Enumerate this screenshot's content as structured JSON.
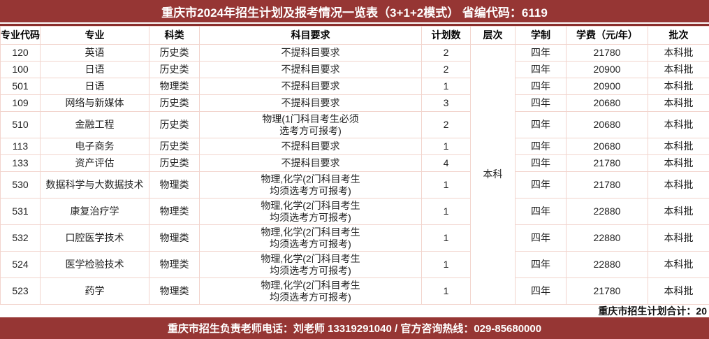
{
  "title": "重庆市2024年招生计划及报考情况一览表（3+1+2模式） 省编代码：6119",
  "colors": {
    "banner_background": "#963634",
    "divider": "#8a2e2c",
    "grid_line": "#f2d4cd",
    "banner_text": "#ffffff"
  },
  "table": {
    "headers": [
      "专业代码",
      "专业",
      "科类",
      "科目要求",
      "计划数",
      "层次",
      "学制",
      "学费（元/年）",
      "批次"
    ],
    "level": "本科",
    "rows": [
      {
        "code": "120",
        "major": "英语",
        "category": "历史类",
        "requirement": "不提科目要求",
        "plan": "2",
        "years": "四年",
        "fee": "21780",
        "batch": "本科批"
      },
      {
        "code": "100",
        "major": "日语",
        "category": "历史类",
        "requirement": "不提科目要求",
        "plan": "2",
        "years": "四年",
        "fee": "20900",
        "batch": "本科批"
      },
      {
        "code": "501",
        "major": "日语",
        "category": "物理类",
        "requirement": "不提科目要求",
        "plan": "1",
        "years": "四年",
        "fee": "20900",
        "batch": "本科批"
      },
      {
        "code": "109",
        "major": "网络与新媒体",
        "category": "历史类",
        "requirement": "不提科目要求",
        "plan": "3",
        "years": "四年",
        "fee": "20680",
        "batch": "本科批"
      },
      {
        "code": "510",
        "major": "金融工程",
        "category": "历史类",
        "requirement": "物理(1门科目考生必须\n选考方可报考)",
        "plan": "2",
        "years": "四年",
        "fee": "20680",
        "batch": "本科批"
      },
      {
        "code": "113",
        "major": "电子商务",
        "category": "历史类",
        "requirement": "不提科目要求",
        "plan": "1",
        "years": "四年",
        "fee": "20680",
        "batch": "本科批"
      },
      {
        "code": "133",
        "major": "资产评估",
        "category": "历史类",
        "requirement": "不提科目要求",
        "plan": "4",
        "years": "四年",
        "fee": "21780",
        "batch": "本科批"
      },
      {
        "code": "530",
        "major": "数据科学与大数据技术",
        "category": "物理类",
        "requirement": "物理,化学(2门科目考生\n均须选考方可报考)",
        "plan": "1",
        "years": "四年",
        "fee": "21780",
        "batch": "本科批"
      },
      {
        "code": "531",
        "major": "康复治疗学",
        "category": "物理类",
        "requirement": "物理,化学(2门科目考生\n均须选考方可报考)",
        "plan": "1",
        "years": "四年",
        "fee": "22880",
        "batch": "本科批"
      },
      {
        "code": "532",
        "major": "口腔医学技术",
        "category": "物理类",
        "requirement": "物理,化学(2门科目考生\n均须选考方可报考)",
        "plan": "1",
        "years": "四年",
        "fee": "22880",
        "batch": "本科批"
      },
      {
        "code": "524",
        "major": "医学检验技术",
        "category": "物理类",
        "requirement": "物理,化学(2门科目考生\n均须选考方可报考)",
        "plan": "1",
        "years": "四年",
        "fee": "22880",
        "batch": "本科批"
      },
      {
        "code": "523",
        "major": "药学",
        "category": "物理类",
        "requirement": "物理,化学(2门科目考生\n均须选考方可报考)",
        "plan": "1",
        "years": "四年",
        "fee": "21780",
        "batch": "本科批"
      }
    ]
  },
  "summary": "重庆市招生计划合计：20",
  "footer": "重庆市招生负责老师电话：刘老师 13319291040  /  官方咨询热线：029-85680000"
}
